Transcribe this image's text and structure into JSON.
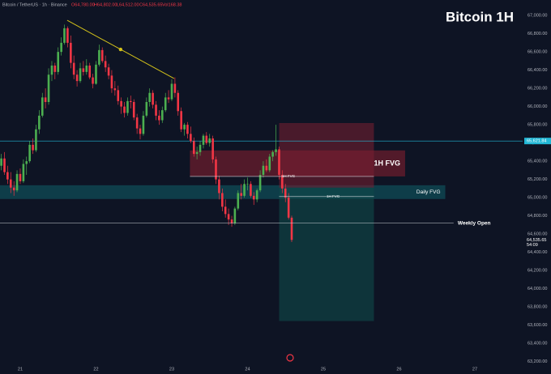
{
  "chart_data": {
    "type": "candlestick",
    "title": "Bitcoin 1H",
    "symbol": "Bitcoin / TetherUS · 1h · Binance",
    "ohlc_labels": [
      "O64,780.00",
      "H64,802.00",
      "L64,512.00",
      "C64,535.65"
    ],
    "volume_label": "Vol168.38",
    "up_color": "#4caf50",
    "down_color": "#f23645",
    "x": [
      20.75,
      20.792,
      20.833,
      20.875,
      20.917,
      20.958,
      21.0,
      21.042,
      21.083,
      21.125,
      21.167,
      21.208,
      21.25,
      21.292,
      21.333,
      21.375,
      21.417,
      21.458,
      21.5,
      21.542,
      21.583,
      21.625,
      21.667,
      21.708,
      21.75,
      21.792,
      21.833,
      21.875,
      21.917,
      21.958,
      22.0,
      22.042,
      22.083,
      22.125,
      22.167,
      22.208,
      22.25,
      22.292,
      22.333,
      22.375,
      22.417,
      22.458,
      22.5,
      22.542,
      22.583,
      22.625,
      22.667,
      22.708,
      22.75,
      22.792,
      22.833,
      22.875,
      22.917,
      22.958,
      23.0,
      23.042,
      23.083,
      23.125,
      23.167,
      23.208,
      23.25,
      23.292,
      23.333,
      23.375,
      23.417,
      23.458,
      23.5,
      23.542,
      23.583,
      23.625,
      23.667,
      23.708,
      23.75,
      23.792,
      23.833,
      23.875,
      23.917,
      23.958,
      24.0,
      24.042,
      24.083,
      24.125,
      24.167,
      24.208,
      24.25,
      24.292,
      24.333,
      24.375,
      24.417,
      24.458,
      24.5,
      24.542,
      24.583
    ],
    "candles": [
      [
        65350,
        65480,
        65300,
        65430
      ],
      [
        65430,
        65500,
        65250,
        65280
      ],
      [
        65280,
        65350,
        65150,
        65200
      ],
      [
        65200,
        65280,
        65050,
        65110
      ],
      [
        65110,
        65180,
        65020,
        65080
      ],
      [
        65080,
        65300,
        65060,
        65260
      ],
      [
        65260,
        65320,
        65150,
        65180
      ],
      [
        65180,
        65420,
        65160,
        65370
      ],
      [
        65370,
        65450,
        65250,
        65400
      ],
      [
        65400,
        65620,
        65380,
        65580
      ],
      [
        65580,
        65650,
        65480,
        65520
      ],
      [
        65520,
        65800,
        65500,
        65750
      ],
      [
        65750,
        65960,
        65700,
        65900
      ],
      [
        65900,
        66150,
        65880,
        66100
      ],
      [
        66100,
        66200,
        65980,
        66050
      ],
      [
        66050,
        66420,
        66020,
        66350
      ],
      [
        66350,
        66500,
        66280,
        66450
      ],
      [
        66450,
        66480,
        66300,
        66380
      ],
      [
        66380,
        66650,
        66350,
        66600
      ],
      [
        66600,
        66760,
        66560,
        66700
      ],
      [
        66700,
        66900,
        66680,
        66860
      ],
      [
        66860,
        66880,
        66650,
        66700
      ],
      [
        66700,
        66780,
        66420,
        66480
      ],
      [
        66480,
        66560,
        66300,
        66350
      ],
      [
        66350,
        66400,
        66220,
        66280
      ],
      [
        66280,
        66480,
        66260,
        66420
      ],
      [
        66420,
        66500,
        66340,
        66380
      ],
      [
        66380,
        66520,
        66350,
        66450
      ],
      [
        66450,
        66480,
        66300,
        66320
      ],
      [
        66320,
        66360,
        66200,
        66250
      ],
      [
        66250,
        66500,
        66240,
        66460
      ],
      [
        66460,
        66680,
        66440,
        66620
      ],
      [
        66620,
        66650,
        66480,
        66500
      ],
      [
        66500,
        66560,
        66380,
        66430
      ],
      [
        66430,
        66470,
        66300,
        66340
      ],
      [
        66340,
        66400,
        66150,
        66200
      ],
      [
        66200,
        66280,
        66120,
        66180
      ],
      [
        66180,
        66230,
        66020,
        66060
      ],
      [
        66060,
        66100,
        65920,
        66000
      ],
      [
        66000,
        66050,
        65880,
        65930
      ],
      [
        65930,
        66100,
        65900,
        66060
      ],
      [
        66060,
        66120,
        65980,
        66050
      ],
      [
        66050,
        66080,
        65850,
        65880
      ],
      [
        65880,
        65920,
        65700,
        65760
      ],
      [
        65760,
        65800,
        65640,
        65700
      ],
      [
        65700,
        65950,
        65680,
        65900
      ],
      [
        65900,
        66100,
        65880,
        66050
      ],
      [
        66050,
        66200,
        66000,
        66150
      ],
      [
        66150,
        66180,
        65980,
        66020
      ],
      [
        66020,
        66060,
        65850,
        65900
      ],
      [
        65900,
        65960,
        65800,
        65850
      ],
      [
        65850,
        66000,
        65820,
        65960
      ],
      [
        65960,
        66150,
        65940,
        66100
      ],
      [
        66100,
        66180,
        66040,
        66080
      ],
      [
        66080,
        66300,
        66060,
        66250
      ],
      [
        66250,
        66320,
        66100,
        66150
      ],
      [
        66150,
        66180,
        65900,
        65950
      ],
      [
        65950,
        65990,
        65720,
        65750
      ],
      [
        65750,
        65820,
        65680,
        65800
      ],
      [
        65800,
        65830,
        65650,
        65700
      ],
      [
        65700,
        65780,
        65600,
        65620
      ],
      [
        65620,
        65660,
        65450,
        65480
      ],
      [
        65480,
        65560,
        65420,
        65500
      ],
      [
        65500,
        65620,
        65460,
        65580
      ],
      [
        65580,
        65700,
        65540,
        65680
      ],
      [
        65680,
        65720,
        65580,
        65600
      ],
      [
        65600,
        65700,
        65560,
        65650
      ],
      [
        65650,
        65680,
        65380,
        65420
      ],
      [
        65420,
        65450,
        65150,
        65200
      ],
      [
        65200,
        65240,
        64980,
        65050
      ],
      [
        65050,
        65100,
        64850,
        64900
      ],
      [
        64900,
        64980,
        64780,
        64820
      ],
      [
        64820,
        64880,
        64700,
        64760
      ],
      [
        64760,
        64800,
        64680,
        64720
      ],
      [
        64720,
        64900,
        64700,
        64880
      ],
      [
        64880,
        65080,
        64860,
        65050
      ],
      [
        65050,
        65150,
        64980,
        65020
      ],
      [
        65020,
        65200,
        65000,
        65150
      ],
      [
        65150,
        65220,
        65080,
        65150
      ],
      [
        65150,
        65180,
        65000,
        65020
      ],
      [
        65020,
        65060,
        64920,
        64980
      ],
      [
        64980,
        65100,
        64950,
        65080
      ],
      [
        65080,
        65300,
        65060,
        65250
      ],
      [
        65250,
        65400,
        65220,
        65350
      ],
      [
        65350,
        65420,
        65280,
        65300
      ],
      [
        65300,
        65480,
        65280,
        65450
      ],
      [
        65450,
        65520,
        65400,
        65500
      ],
      [
        65500,
        65800,
        65460,
        65530
      ],
      [
        65530,
        65560,
        65200,
        65250
      ],
      [
        65250,
        65300,
        65050,
        65100
      ],
      [
        65100,
        65150,
        64950,
        65000
      ],
      [
        65000,
        65050,
        64760,
        64780
      ],
      [
        64780,
        64802,
        64512,
        64535.65
      ]
    ],
    "xlim": [
      20.733,
      27.631
    ],
    "xticks": [
      21,
      22,
      23,
      24,
      25,
      26,
      27
    ],
    "ylim": [
      63170,
      67170
    ],
    "yticks": [
      {
        "value": 67000,
        "label": "67,000.00"
      },
      {
        "value": 66800,
        "label": "66,800.00"
      },
      {
        "value": 66600,
        "label": "66,600.00"
      },
      {
        "value": 66400,
        "label": "66,400.00"
      },
      {
        "value": 66200,
        "label": "66,200.00"
      },
      {
        "value": 66000,
        "label": "66,000.00"
      },
      {
        "value": 65800,
        "label": "65,800.00"
      },
      {
        "value": 65600,
        "label": "65,600.00"
      },
      {
        "value": 65400,
        "label": "65,400.00"
      },
      {
        "value": 65200,
        "label": "65,200.00"
      },
      {
        "value": 65000,
        "label": "65,000.00"
      },
      {
        "value": 64800,
        "label": "64,800.00"
      },
      {
        "value": 64600,
        "label": "64,600.00"
      },
      {
        "value": 64400,
        "label": "64,400.00"
      },
      {
        "value": 64200,
        "label": "64,200.00"
      },
      {
        "value": 64000,
        "label": "64,000.00"
      },
      {
        "value": 63800,
        "label": "63,800.00"
      },
      {
        "value": 63600,
        "label": "63,600.00"
      },
      {
        "value": 63400,
        "label": "63,400.00"
      },
      {
        "value": 63200,
        "label": "63,200.00"
      }
    ],
    "grid": false,
    "zones": [
      {
        "name": "1H FVG",
        "y": [
          65233,
          65518
        ],
        "x": [
          23.24,
          26.08
        ],
        "color": "#5e1b2c"
      },
      {
        "name": "Daily FVG",
        "y": [
          64985,
          65136
        ],
        "x": [
          20.733,
          26.61
        ],
        "color": "#0e4450"
      }
    ],
    "position": {
      "x": [
        24.417,
        25.668
      ],
      "stop": 65819,
      "entry": 65109,
      "target": 63645,
      "stop_color": "#7a1f31",
      "target_color": "#0f4a4a"
    },
    "levels": [
      {
        "name": "1H FVG",
        "value": 65233,
        "x": [
          23.24,
          25.668
        ]
      },
      {
        "name": "1H FVG",
        "value": 65012,
        "x": [
          24.417,
          25.668
        ]
      },
      {
        "name": "Weekly Open",
        "value": 64719,
        "x": [
          20.733,
          26.72
        ]
      }
    ],
    "price_line": {
      "value": 65621.84,
      "label": "65,621.84",
      "color": "#22b8d6"
    },
    "last_price": {
      "value": 64535.65,
      "label": "64,535.65",
      "countdown": "54:09"
    },
    "trendline": {
      "x": [
        21.62,
        23.03
      ],
      "y": [
        66947,
        66308
      ],
      "color": "#d4c21a"
    }
  }
}
